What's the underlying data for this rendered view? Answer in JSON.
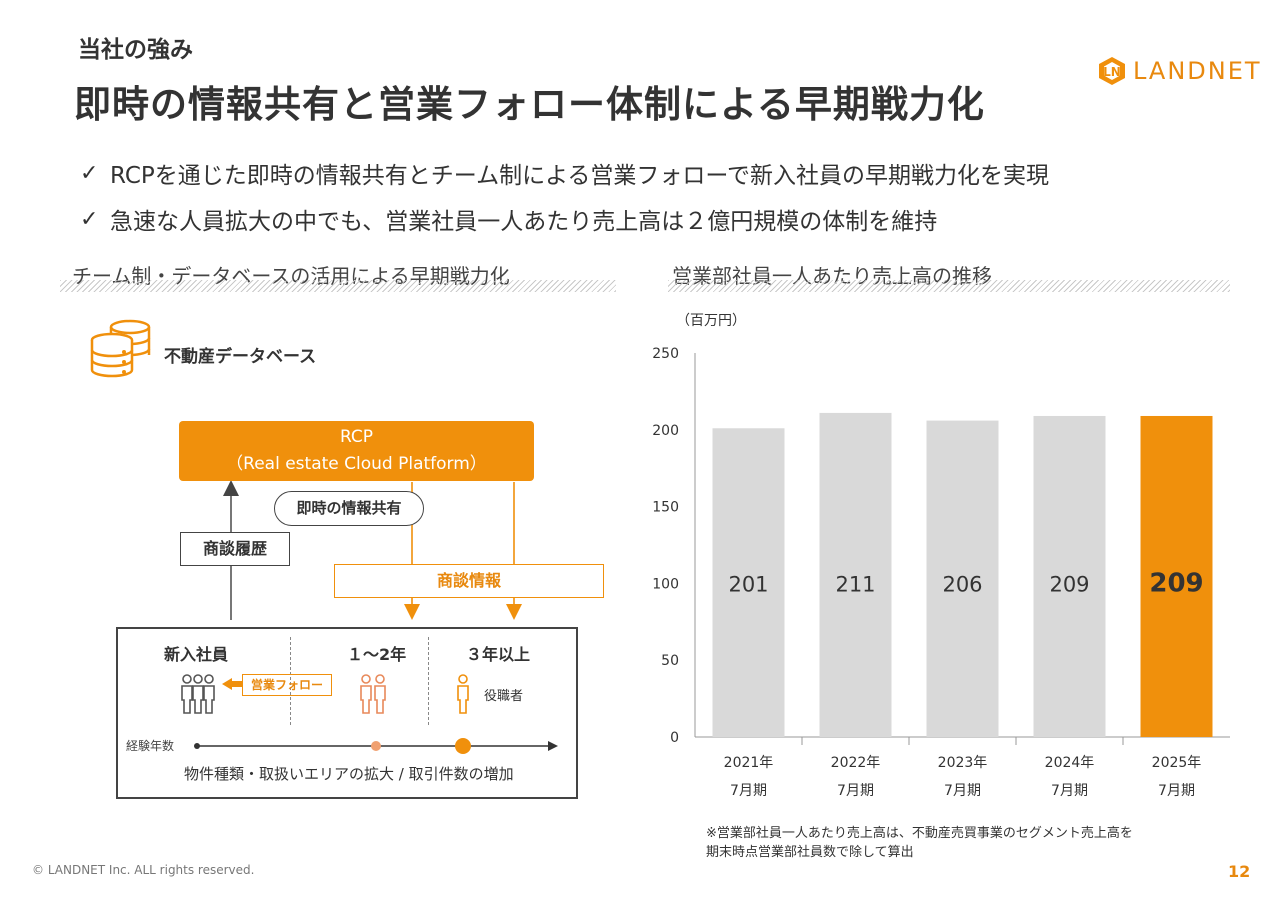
{
  "header": {
    "kicker": "当社の強み",
    "title": "即時の情報共有と営業フォロー体制による早期戦力化",
    "logo_text": "LANDNET"
  },
  "bullets": [
    "RCPを通じた即時の情報共有とチーム制による営業フォローで新入社員の早期戦力化を実現",
    "急速な人員拡大の中でも、営業社員一人あたり売上高は２億円規模の体制を維持"
  ],
  "left_section": {
    "title": "チーム制・データベースの活用による早期戦力化",
    "database_label": "不動産データベース",
    "rcp_line1": "RCP",
    "rcp_line2": "（Real estate Cloud Platform）",
    "share_label": "即時の情報共有",
    "history_label": "商談履歴",
    "info_label": "商談情報",
    "team": {
      "col1": "新入社員",
      "col2": "１～2年",
      "col3": "３年以上",
      "follow_label": "営業フォロー",
      "manager_label": "役職者",
      "axis_label": "経験年数",
      "expand_label": "物件種類・取扱いエリアの拡大 / 取引件数の増加"
    }
  },
  "right_section": {
    "title": "営業部社員一人あたり売上高の推移",
    "unit": "（百万円）",
    "footnote_line1": "※営業部社員一人あたり売上高は、不動産売買事業のセグメント売上高を",
    "footnote_line2": "期末時点営業部社員数で除して算出"
  },
  "footer": {
    "copyright": "© LANDNET Inc. ALL rights reserved.",
    "page": "12"
  },
  "colors": {
    "accent": "#f0900c",
    "bar_gray": "#d9d9d9",
    "text": "#333333"
  },
  "chart_data": {
    "type": "bar",
    "categories": [
      [
        "2021年",
        "7月期"
      ],
      [
        "2022年",
        "7月期"
      ],
      [
        "2023年",
        "7月期"
      ],
      [
        "2024年",
        "7月期"
      ],
      [
        "2025年",
        "7月期"
      ]
    ],
    "values": [
      201,
      211,
      206,
      209,
      209
    ],
    "highlight_index": 4,
    "ylim": [
      0,
      250
    ],
    "yticks": [
      0,
      50,
      100,
      150,
      200,
      250
    ],
    "ylabel": "（百万円）",
    "grid": false
  }
}
